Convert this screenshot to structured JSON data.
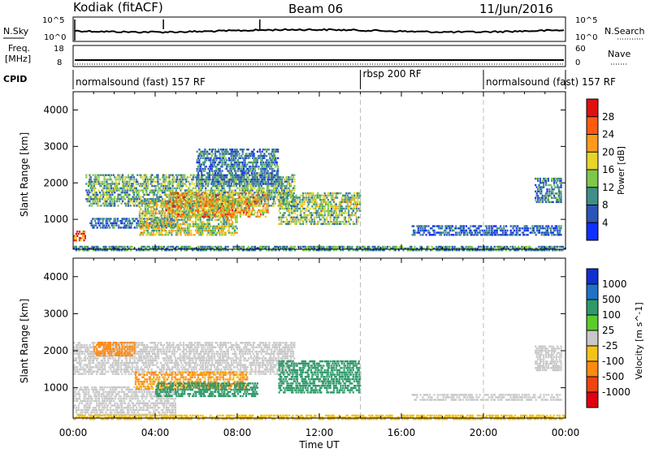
{
  "header": {
    "station": "Kodiak (fitACF)",
    "beam": "Beam 06",
    "date": "11/Jun/2016"
  },
  "noise_panel": {
    "left_label": "N.Sky",
    "right_label": "N.Search",
    "left_ticks": [
      "10^5",
      "10^0"
    ],
    "right_ticks": [
      "10^5",
      "10^0"
    ]
  },
  "freq_panel": {
    "left_label_1": "Freq.",
    "left_label_2": "[MHz]",
    "right_label": "Nave",
    "left_ticks": [
      "18",
      "8"
    ],
    "right_ticks": [
      "60",
      "0"
    ]
  },
  "cpid_panel": {
    "label": "CPID",
    "segments": [
      {
        "label": "normalsound (fast) 157 RF",
        "start_hour": 0,
        "end_hour": 14
      },
      {
        "label": "rbsp 200 RF",
        "start_hour": 14,
        "end_hour": 20
      },
      {
        "label": "normalsound (fast) 157 RF",
        "start_hour": 20,
        "end_hour": 24
      }
    ]
  },
  "chart_data": [
    {
      "type": "heatmap",
      "title": "",
      "xlabel": "",
      "ylabel": "Slant Range [km]",
      "xlim": [
        0,
        24
      ],
      "ylim": [
        180,
        4500
      ],
      "yticks": [
        "1000",
        "2000",
        "3000",
        "4000"
      ],
      "colorbar_label": "Power [dB]",
      "colorbar_ticks": [
        "4",
        "8",
        "12",
        "16",
        "20",
        "24",
        "28"
      ],
      "colorbar_colors": [
        "#1030ff",
        "#2a55b8",
        "#3f8f88",
        "#7ec74a",
        "#e8d52a",
        "#ff9a1a",
        "#ff5a10",
        "#e01010"
      ],
      "colorbar_range": [
        0,
        32
      ],
      "vertical_markers_hours": [
        14,
        20
      ],
      "regions": [
        {
          "t0": 0.0,
          "t1": 0.6,
          "r0": 450,
          "r1": 750,
          "value": 26
        },
        {
          "t0": 0.6,
          "t1": 10.8,
          "r0": 1400,
          "r1": 2300,
          "value": 12
        },
        {
          "t0": 0.8,
          "t1": 5.0,
          "r0": 800,
          "r1": 1100,
          "value": 7
        },
        {
          "t0": 3.2,
          "t1": 8.0,
          "r0": 600,
          "r1": 1600,
          "value": 16
        },
        {
          "t0": 4.5,
          "t1": 9.5,
          "r0": 1100,
          "r1": 1800,
          "value": 20
        },
        {
          "t0": 6.0,
          "t1": 10.0,
          "r0": 2000,
          "r1": 3000,
          "value": 8
        },
        {
          "t0": 10.0,
          "t1": 14.0,
          "r0": 900,
          "r1": 1800,
          "value": 14
        },
        {
          "t0": 16.5,
          "t1": 23.8,
          "r0": 600,
          "r1": 900,
          "value": 6
        },
        {
          "t0": 22.5,
          "t1": 23.8,
          "r0": 1500,
          "r1": 2200,
          "value": 9
        },
        {
          "t0": 0.0,
          "t1": 24.0,
          "r0": 180,
          "r1": 320,
          "value": 10
        }
      ]
    },
    {
      "type": "heatmap",
      "title": "",
      "xlabel": "Time UT",
      "ylabel": "Slant Range [km]",
      "xlim": [
        0,
        24
      ],
      "ylim": [
        180,
        4500
      ],
      "xticks": [
        "00:00",
        "04:00",
        "08:00",
        "12:00",
        "16:00",
        "20:00",
        "00:00"
      ],
      "yticks": [
        "1000",
        "2000",
        "3000",
        "4000"
      ],
      "colorbar_label": "Velocity [m s^-1]",
      "colorbar_ticks": [
        "1000",
        "500",
        "100",
        "25",
        "-25",
        "-100",
        "-500",
        "-1000"
      ],
      "colorbar_colors": [
        "#1030d0",
        "#1e73c8",
        "#2e9a6a",
        "#5ccc2a",
        "#c8c8c8",
        "#f5c21a",
        "#ff8a10",
        "#f04410",
        "#e00010"
      ],
      "vertical_markers_hours": [
        14,
        20
      ],
      "regions": [
        {
          "t0": 0.0,
          "t1": 10.8,
          "r0": 1400,
          "r1": 2300,
          "value": 0
        },
        {
          "t0": 0.0,
          "t1": 5.0,
          "r0": 300,
          "r1": 1100,
          "value": 0
        },
        {
          "t0": 1.0,
          "t1": 3.0,
          "r0": 1900,
          "r1": 2300,
          "value": -200
        },
        {
          "t0": 3.0,
          "t1": 8.5,
          "r0": 1000,
          "r1": 1500,
          "value": -120
        },
        {
          "t0": 4.0,
          "t1": 9.0,
          "r0": 800,
          "r1": 1200,
          "value": 150
        },
        {
          "t0": 10.0,
          "t1": 14.0,
          "r0": 900,
          "r1": 1800,
          "value": 150
        },
        {
          "t0": 16.5,
          "t1": 23.8,
          "r0": 700,
          "r1": 900,
          "value": 0
        },
        {
          "t0": 22.5,
          "t1": 23.8,
          "r0": 1500,
          "r1": 2200,
          "value": 0
        },
        {
          "t0": 0.0,
          "t1": 24.0,
          "r0": 180,
          "r1": 320,
          "value": -50
        }
      ]
    }
  ]
}
